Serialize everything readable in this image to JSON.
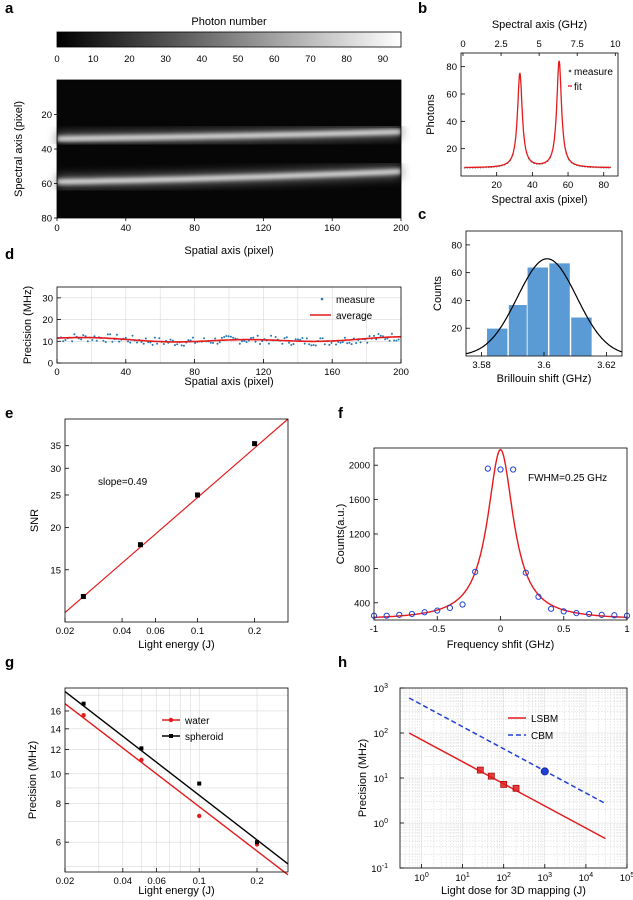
{
  "panels": {
    "a": {
      "label": "a"
    },
    "b": {
      "label": "b"
    },
    "c": {
      "label": "c"
    },
    "d": {
      "label": "d"
    },
    "e": {
      "label": "e"
    },
    "f": {
      "label": "f"
    },
    "g": {
      "label": "g"
    },
    "h": {
      "label": "h"
    }
  },
  "chart_data": [
    {
      "id": "a",
      "type": "heatmap",
      "colorbar_title": "Photon number",
      "colorbar_range": [
        0,
        95
      ],
      "colorbar_ticks": [
        0,
        10,
        20,
        30,
        40,
        50,
        60,
        70,
        80,
        90
      ],
      "xlabel": "Spatial axis (pixel)",
      "ylabel": "Spectral axis (pixel)",
      "xlim": [
        0,
        200
      ],
      "ylim": [
        0,
        80
      ],
      "xticks": [
        0,
        40,
        80,
        120,
        160,
        200
      ],
      "yticks": [
        20,
        40,
        60,
        80
      ],
      "bands": [
        {
          "name": "line 1",
          "center_start": 34,
          "center_end": 30,
          "peak": 90
        },
        {
          "name": "line 2",
          "center_start": 59,
          "center_end": 53,
          "peak": 92
        }
      ]
    },
    {
      "id": "b",
      "type": "line",
      "xlabel": "Spectral axis (pixel)",
      "ylabel": "Photons",
      "top_xlabel": "Spectral axis (GHz)",
      "xlim": [
        0,
        88
      ],
      "ylim": [
        0,
        90
      ],
      "xticks": [
        20,
        40,
        60,
        80
      ],
      "yticks": [
        20,
        40,
        60,
        80
      ],
      "top_xticks": [
        "0",
        "2.5",
        "5",
        "7.5",
        "10"
      ],
      "legend": [
        "measure",
        "fit"
      ],
      "peaks": [
        {
          "x": 33,
          "height": 75
        },
        {
          "x": 55,
          "height": 84
        }
      ],
      "baseline": 6
    },
    {
      "id": "c",
      "type": "bar",
      "xlabel": "Brillouin shift (GHz)",
      "ylabel": "Counts",
      "xlim": [
        3.575,
        3.625
      ],
      "ylim": [
        0,
        90
      ],
      "xticks": [
        "3.58",
        "3.6",
        "3.62"
      ],
      "yticks": [
        20,
        40,
        60,
        80
      ],
      "bins": [
        3.585,
        3.592,
        3.598,
        3.605,
        3.612
      ],
      "counts": [
        20,
        37,
        64,
        67,
        28
      ],
      "fit_peak": 70,
      "fit_center": 3.601
    },
    {
      "id": "d",
      "type": "scatter",
      "xlabel": "Spatial axis (pixel)",
      "ylabel": "Precision (MHz)",
      "xlim": [
        0,
        200
      ],
      "ylim": [
        0,
        35
      ],
      "xticks": [
        0,
        40,
        80,
        120,
        160,
        200
      ],
      "yticks": [
        0,
        10,
        20,
        30
      ],
      "legend": [
        "measure",
        "average"
      ],
      "average_start": 11.5,
      "average_end": 11.5,
      "average_dip": 10
    },
    {
      "id": "e",
      "type": "scatter",
      "xlabel": "Light energy (J)",
      "ylabel": "SNR",
      "xscale": "log",
      "yscale": "log",
      "xlim": [
        0.02,
        0.3
      ],
      "ylim": [
        10.5,
        42
      ],
      "xticks": [
        "0.02",
        "0.04",
        "0.06",
        "0.1",
        "0.2"
      ],
      "yticks": [
        "15",
        "20",
        "25",
        "30",
        "35"
      ],
      "annotation": "slope=0.49",
      "x": [
        0.025,
        0.05,
        0.1,
        0.2
      ],
      "y": [
        12.5,
        17.8,
        25,
        35.5
      ],
      "fit": {
        "x": [
          0.02,
          0.3
        ],
        "y": [
          11.2,
          42
        ]
      }
    },
    {
      "id": "f",
      "type": "line",
      "xlabel": "Frequency shfit (GHz)",
      "ylabel": "Counts(a.u.)",
      "xlim": [
        -1,
        1
      ],
      "ylim": [
        200,
        2200
      ],
      "xticks": [
        "-1",
        "-0.5",
        "0",
        "0.5",
        "1"
      ],
      "yticks": [
        "400",
        "800",
        "1200",
        "1600",
        "2000"
      ],
      "annotation": "FWHM=0.25 GHz",
      "fit_peak": 2180,
      "fit_baseline": 200,
      "fit_hwhm": 0.125,
      "x": [
        -1,
        -0.9,
        -0.8,
        -0.7,
        -0.6,
        -0.5,
        -0.4,
        -0.3,
        -0.2,
        -0.1,
        0,
        0.1,
        0.2,
        0.3,
        0.4,
        0.5,
        0.6,
        0.7,
        0.8,
        0.9,
        1
      ],
      "y": [
        250,
        250,
        260,
        270,
        290,
        310,
        340,
        380,
        760,
        1960,
        1950,
        1950,
        750,
        470,
        330,
        300,
        280,
        270,
        260,
        255,
        250
      ]
    },
    {
      "id": "g",
      "type": "scatter",
      "xlabel": "Light energy (J)",
      "ylabel": "Precision (MHz)",
      "xscale": "log",
      "yscale": "log",
      "xlim": [
        0.02,
        0.29
      ],
      "ylim": [
        4.8,
        19
      ],
      "xticks": [
        "0.02",
        "0.04",
        "0.06",
        "0.1",
        "0.2"
      ],
      "yticks": [
        "6",
        "8",
        "10",
        "12",
        "14",
        "16"
      ],
      "series": [
        {
          "name": "water",
          "color": "#e41a1c",
          "x": [
            0.025,
            0.05,
            0.1,
            0.2
          ],
          "y": [
            15.5,
            11.1,
            7.3,
            5.9
          ],
          "fit": {
            "x": [
              0.02,
              0.29
            ],
            "y": [
              16.9,
              4.7
            ]
          }
        },
        {
          "name": "spheroid",
          "color": "#000000",
          "x": [
            0.025,
            0.05,
            0.1,
            0.2
          ],
          "y": [
            16.9,
            12.1,
            9.3,
            6.0
          ],
          "fit": {
            "x": [
              0.02,
              0.29
            ],
            "y": [
              18.5,
              5.1
            ]
          }
        }
      ]
    },
    {
      "id": "h",
      "type": "line",
      "xlabel": "Light dose for 3D mapping (J)",
      "ylabel": "Precision (MHz)",
      "xscale": "log",
      "yscale": "log",
      "xlim": [
        0.3,
        100000
      ],
      "ylim": [
        0.1,
        1000
      ],
      "xtick_exponents": [
        0,
        1,
        2,
        3,
        4,
        5
      ],
      "ytick_exponents": [
        -1,
        0,
        1,
        2,
        3
      ],
      "tick_base": "10",
      "series": [
        {
          "name": "LSBM",
          "color": "#e41a1c",
          "style": "solid",
          "line": {
            "x": [
              0.5,
              30000
            ],
            "y": [
              100,
              0.45
            ]
          },
          "points": {
            "x": [
              27,
              50,
              100,
              200
            ],
            "y": [
              15,
              11,
              7.2,
              5.9
            ]
          }
        },
        {
          "name": "CBM",
          "color": "#1f3fd6",
          "style": "dashed",
          "line": {
            "x": [
              0.5,
              30000
            ],
            "y": [
              600,
              2.7
            ]
          },
          "points": {
            "x": [
              1000
            ],
            "y": [
              14
            ]
          }
        }
      ]
    }
  ]
}
